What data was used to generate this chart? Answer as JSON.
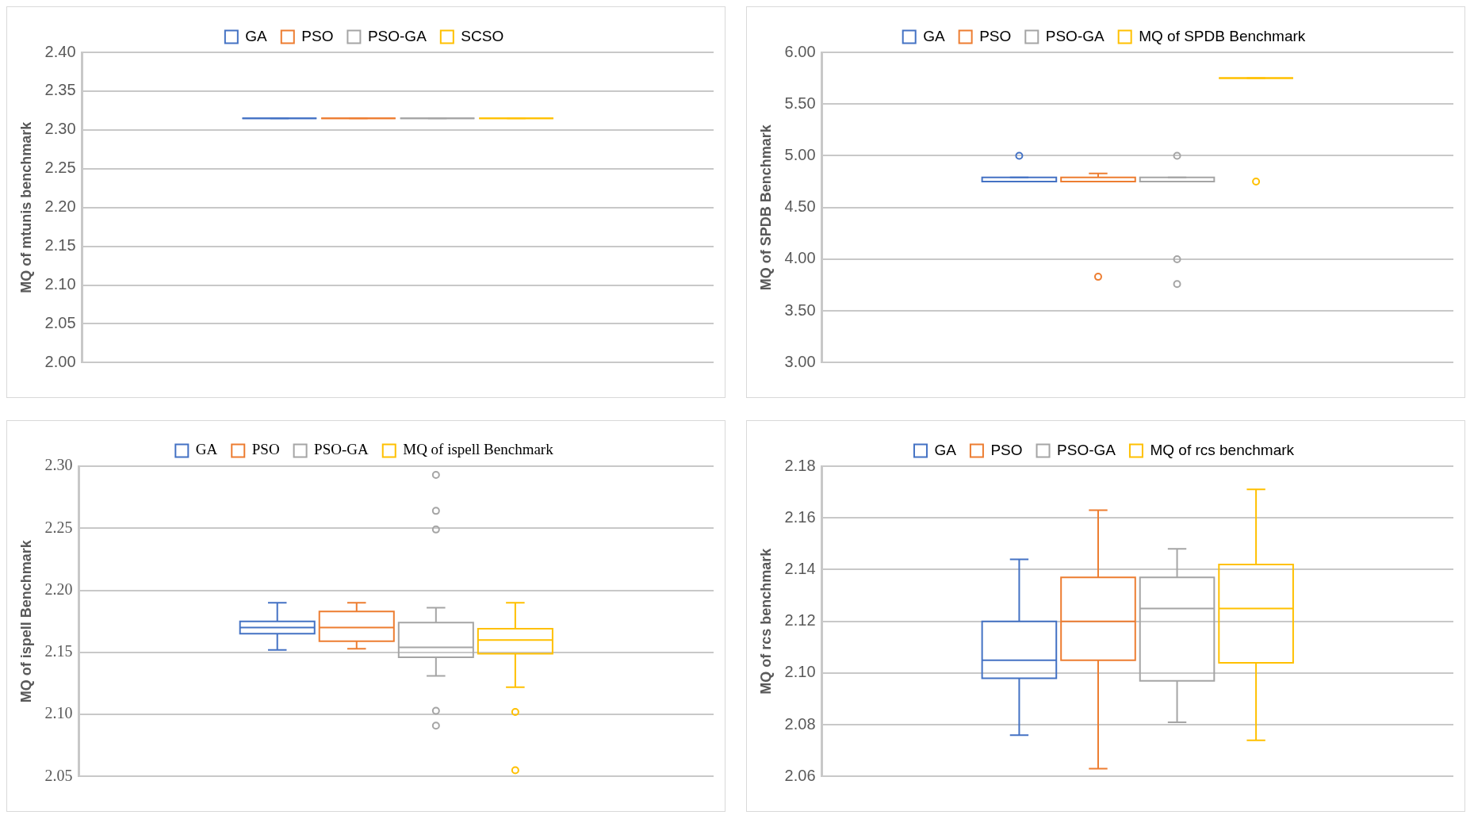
{
  "chart_data": [
    {
      "type": "box",
      "categories": [
        null
      ],
      "ylabel": "MQ of mtunis benchmark",
      "ylim": [
        2.0,
        2.4
      ],
      "yticks": [
        {
          "value": 2.0,
          "label": "2.00"
        },
        {
          "value": 2.05,
          "label": "2.05"
        },
        {
          "value": 2.1,
          "label": "2.10"
        },
        {
          "value": 2.15,
          "label": "2.15"
        },
        {
          "value": 2.2,
          "label": "2.20"
        },
        {
          "value": 2.25,
          "label": "2.25"
        },
        {
          "value": 2.3,
          "label": "2.30"
        },
        {
          "value": 2.35,
          "label": "2.35"
        },
        {
          "value": 2.4,
          "label": "2.40"
        }
      ],
      "grid": "y",
      "legend": "top",
      "series": [
        {
          "name": "GA",
          "color": "#4472c4",
          "boxes": [
            {
              "low": 2.315,
              "q1": 2.315,
              "median": 2.315,
              "q3": 2.315,
              "high": 2.315
            }
          ]
        },
        {
          "name": "PSO",
          "color": "#ed7d31",
          "boxes": [
            {
              "low": 2.315,
              "q1": 2.315,
              "median": 2.315,
              "q3": 2.315,
              "high": 2.315
            }
          ]
        },
        {
          "name": "PSO-GA",
          "color": "#a5a5a5",
          "boxes": [
            {
              "low": 2.315,
              "q1": 2.315,
              "median": 2.315,
              "q3": 2.315,
              "high": 2.315
            }
          ]
        },
        {
          "name": "SCSO",
          "color": "#ffc000",
          "boxes": [
            {
              "low": 2.315,
              "q1": 2.315,
              "median": 2.315,
              "q3": 2.315,
              "high": 2.315
            }
          ]
        }
      ]
    },
    {
      "type": "box",
      "categories": [
        null
      ],
      "ylabel": "MQ of SPDB Benchmark",
      "ylim": [
        3.0,
        6.0
      ],
      "yticks": [
        {
          "value": 3.0,
          "label": "3.00"
        },
        {
          "value": 3.5,
          "label": "3.50"
        },
        {
          "value": 4.0,
          "label": "4.00"
        },
        {
          "value": 4.5,
          "label": "4.50"
        },
        {
          "value": 5.0,
          "label": "5.00"
        },
        {
          "value": 5.5,
          "label": "5.50"
        },
        {
          "value": 6.0,
          "label": "6.00"
        }
      ],
      "grid": "y",
      "legend": "top",
      "series": [
        {
          "name": "GA",
          "color": "#4472c4",
          "boxes": [
            {
              "low": 4.75,
              "q1": 4.75,
              "median": 4.75,
              "q3": 4.79,
              "high": 4.79,
              "outliers": [
                5.0
              ]
            }
          ]
        },
        {
          "name": "PSO",
          "color": "#ed7d31",
          "boxes": [
            {
              "low": 4.75,
              "q1": 4.75,
              "median": 4.75,
              "q3": 4.79,
              "high": 4.83,
              "outliers": [
                3.83
              ]
            }
          ]
        },
        {
          "name": "PSO-GA",
          "color": "#a5a5a5",
          "boxes": [
            {
              "low": 4.75,
              "q1": 4.75,
              "median": 4.75,
              "q3": 4.79,
              "high": 4.79,
              "outliers": [
                5.0,
                4.0,
                3.76
              ]
            }
          ]
        },
        {
          "name": "MQ of SPDB Benchmark",
          "color": "#ffc000",
          "boxes": [
            {
              "low": 5.75,
              "q1": 5.75,
              "median": 5.75,
              "q3": 5.75,
              "high": 5.75,
              "outliers": [
                4.75
              ]
            }
          ]
        }
      ]
    },
    {
      "type": "box",
      "categories": [
        null
      ],
      "ylabel": "MQ of ispell Benchmark",
      "ylim": [
        2.05,
        2.3
      ],
      "yticks": [
        {
          "value": 2.05,
          "label": "2.05"
        },
        {
          "value": 2.1,
          "label": "2.10"
        },
        {
          "value": 2.15,
          "label": "2.15"
        },
        {
          "value": 2.2,
          "label": "2.20"
        },
        {
          "value": 2.25,
          "label": "2.25"
        },
        {
          "value": 2.3,
          "label": "2.30"
        }
      ],
      "grid": "y",
      "legend": "top",
      "series": [
        {
          "name": "GA",
          "color": "#4472c4",
          "boxes": [
            {
              "low": 2.152,
              "q1": 2.165,
              "median": 2.17,
              "q3": 2.175,
              "high": 2.19
            }
          ]
        },
        {
          "name": "PSO",
          "color": "#ed7d31",
          "boxes": [
            {
              "low": 2.153,
              "q1": 2.159,
              "median": 2.17,
              "q3": 2.183,
              "high": 2.19
            }
          ]
        },
        {
          "name": "PSO-GA",
          "color": "#a5a5a5",
          "boxes": [
            {
              "low": 2.131,
              "q1": 2.146,
              "median": 2.154,
              "q3": 2.174,
              "high": 2.186,
              "outliers": [
                2.293,
                2.264,
                2.249,
                2.103,
                2.091
              ]
            }
          ]
        },
        {
          "name": "MQ of ispell Benchmark",
          "color": "#ffc000",
          "boxes": [
            {
              "low": 2.122,
              "q1": 2.149,
              "median": 2.16,
              "q3": 2.169,
              "high": 2.19,
              "outliers": [
                2.102,
                2.055
              ]
            }
          ]
        }
      ]
    },
    {
      "type": "box",
      "categories": [
        null
      ],
      "ylabel": "MQ of rcs benchmark",
      "ylim": [
        2.06,
        2.18
      ],
      "yticks": [
        {
          "value": 2.06,
          "label": "2.06"
        },
        {
          "value": 2.08,
          "label": "2.08"
        },
        {
          "value": 2.1,
          "label": "2.10"
        },
        {
          "value": 2.12,
          "label": "2.12"
        },
        {
          "value": 2.14,
          "label": "2.14"
        },
        {
          "value": 2.16,
          "label": "2.16"
        },
        {
          "value": 2.18,
          "label": "2.18"
        }
      ],
      "grid": "y",
      "legend": "top",
      "series": [
        {
          "name": "GA",
          "color": "#4472c4",
          "boxes": [
            {
              "low": 2.076,
              "q1": 2.098,
              "median": 2.105,
              "q3": 2.12,
              "high": 2.144
            }
          ]
        },
        {
          "name": "PSO",
          "color": "#ed7d31",
          "boxes": [
            {
              "low": 2.063,
              "q1": 2.105,
              "median": 2.12,
              "q3": 2.137,
              "high": 2.163
            }
          ]
        },
        {
          "name": "PSO-GA",
          "color": "#a5a5a5",
          "boxes": [
            {
              "low": 2.081,
              "q1": 2.097,
              "median": 2.125,
              "q3": 2.137,
              "high": 2.148
            }
          ]
        },
        {
          "name": "MQ of rcs benchmark",
          "color": "#ffc000",
          "boxes": [
            {
              "low": 2.074,
              "q1": 2.104,
              "median": 2.125,
              "q3": 2.142,
              "high": 2.171
            }
          ]
        }
      ]
    }
  ]
}
